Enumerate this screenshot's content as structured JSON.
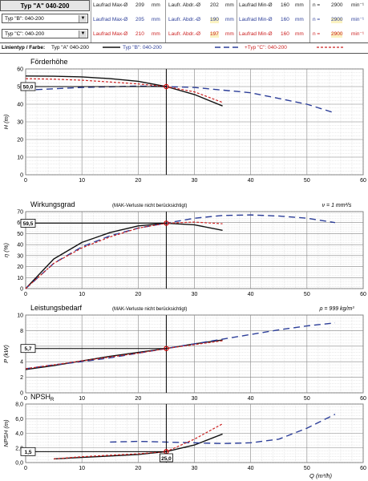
{
  "header": {
    "title_a": "Typ \"A\" 040-200",
    "select_b": "Typ \"B\": 040-200",
    "select_c": "Typ \"C\": 040-200",
    "rows": [
      {
        "color": "#222222",
        "max_label": "Laufrad Max-Ø",
        "max_val": "209",
        "max_unit": "mm",
        "abdr_label": "Laufr. Abdr.-Ø",
        "abdr_val": "202",
        "abdr_unit": "mm",
        "min_label": "Laufrad Min-Ø",
        "min_val": "160",
        "min_unit": "mm",
        "n_label": "n =",
        "n_val": "2900",
        "n_unit": "min⁻¹"
      },
      {
        "color": "#2c3e99",
        "max_label": "Laufrad Max-Ø",
        "max_val": "205",
        "max_unit": "mm",
        "abdr_label": "Laufr. Abdr.-Ø",
        "abdr_val": "190",
        "abdr_unit": "mm",
        "min_label": "Laufrad Min-Ø",
        "min_val": "160",
        "min_unit": "mm",
        "n_label": "n =",
        "n_val": "2900",
        "n_unit": "min⁻¹"
      },
      {
        "color": "#cc2222",
        "max_label": "Laufrad Max-Ø",
        "max_val": "210",
        "max_unit": "mm",
        "abdr_label": "Laufr. Abdr.-Ø",
        "abdr_val": "197",
        "abdr_unit": "mm",
        "min_label": "Laufrad Min-Ø",
        "min_val": "160",
        "min_unit": "mm",
        "n_label": "n =",
        "n_val": "2900",
        "n_unit": "min⁻¹"
      }
    ],
    "legend_label": "Linientyp / Farbe:",
    "legend_a": "Typ \"A\" 040-200",
    "legend_b": "Typ \"B\": 040-200",
    "legend_c": "+Typ \"C\": 040-200"
  },
  "colors": {
    "a": "#111111",
    "b": "#2c3e99",
    "c": "#cc2222",
    "marker": "#cc0000"
  },
  "x_axis": {
    "label": "Q (m³/h)",
    "ticks": [
      "0",
      "10",
      "20",
      "30",
      "40",
      "50",
      "60"
    ],
    "range": [
      0,
      60
    ]
  },
  "chart_data": [
    {
      "type": "line",
      "title": "Förderhöhe",
      "ylabel": "H (m)",
      "ylim": [
        0,
        60
      ],
      "yticks": [
        "0",
        "10",
        "20",
        "30",
        "40",
        "50",
        "60"
      ],
      "grid": true,
      "op_point": {
        "x": 25,
        "y": 50,
        "label": "50,0"
      },
      "series": [
        {
          "name": "Typ \"A\" 040-200",
          "x": [
            0,
            5,
            10,
            15,
            20,
            25,
            30,
            35
          ],
          "y": [
            56,
            55.9,
            55.5,
            54.5,
            53,
            50,
            45.5,
            39
          ]
        },
        {
          "name": "Typ \"B\": 040-200",
          "x": [
            0,
            10,
            20,
            25,
            30,
            40,
            50,
            55
          ],
          "y": [
            48,
            49.5,
            50.3,
            50,
            49.5,
            46.5,
            40,
            35
          ]
        },
        {
          "name": "+Typ \"C\": 040-200",
          "x": [
            0,
            5,
            10,
            15,
            20,
            25,
            30,
            35
          ],
          "y": [
            54.5,
            54.2,
            53.6,
            52.6,
            51.5,
            50,
            47,
            41
          ]
        }
      ]
    },
    {
      "type": "line",
      "title": "Wirkungsgrad",
      "note": "(MAK-Verluste nicht berücksichtigt)",
      "param": "ν = 1 mm²/s",
      "ylabel": "η (%)",
      "ylim": [
        0,
        70
      ],
      "yticks": [
        "0",
        "10",
        "20",
        "30",
        "40",
        "50",
        "60",
        "70"
      ],
      "grid": true,
      "op_point": {
        "x": 25,
        "y": 59.5,
        "label": "59,5"
      },
      "series": [
        {
          "name": "Typ \"A\" 040-200",
          "x": [
            0,
            5,
            10,
            15,
            20,
            25,
            30,
            35
          ],
          "y": [
            0,
            27,
            42,
            51,
            57,
            59.5,
            58,
            53
          ]
        },
        {
          "name": "Typ \"B\": 040-200",
          "x": [
            0,
            5,
            10,
            15,
            20,
            25,
            30,
            35,
            40,
            45,
            50,
            55
          ],
          "y": [
            0,
            23,
            38,
            48,
            55,
            59.5,
            64,
            66.5,
            67,
            66,
            64,
            60
          ]
        },
        {
          "name": "+Typ \"C\": 040-200",
          "x": [
            0,
            5,
            10,
            15,
            20,
            25,
            30,
            35
          ],
          "y": [
            0,
            23,
            37,
            47,
            55,
            59.5,
            60.5,
            59
          ]
        }
      ]
    },
    {
      "type": "line",
      "title": "Leistungsbedarf",
      "note": "(MAK-Verluste nicht berücksichtigt)",
      "param": "ρ = 999 kg/m³",
      "ylabel": "P (kW)",
      "ylim": [
        0,
        10
      ],
      "yticks": [
        "0",
        "2",
        "4",
        "6",
        "8",
        "10"
      ],
      "grid": true,
      "op_point": {
        "x": 25,
        "y": 5.7,
        "label": "5,7"
      },
      "series": [
        {
          "name": "Typ \"A\" 040-200",
          "x": [
            0,
            5,
            10,
            15,
            20,
            25,
            30,
            35
          ],
          "y": [
            3.0,
            3.5,
            4.1,
            4.7,
            5.2,
            5.7,
            6.3,
            6.8
          ]
        },
        {
          "name": "Typ \"B\": 040-200",
          "x": [
            0,
            5,
            10,
            15,
            20,
            25,
            30,
            35,
            40,
            45,
            50,
            55
          ],
          "y": [
            3.1,
            3.6,
            4.0,
            4.5,
            5.1,
            5.7,
            6.3,
            6.9,
            7.5,
            8.1,
            8.6,
            9.0
          ]
        },
        {
          "name": "+Typ \"C\": 040-200",
          "x": [
            0,
            5,
            10,
            15,
            20,
            25,
            30,
            35
          ],
          "y": [
            3.1,
            3.6,
            4.1,
            4.6,
            5.1,
            5.7,
            6.2,
            6.7
          ]
        }
      ]
    },
    {
      "type": "line",
      "title": "NPSH",
      "title_sub": "R",
      "ylabel": "NPSH (m)",
      "ylim": [
        0,
        8
      ],
      "yticks": [
        "0,0",
        "2,0",
        "4,0",
        "6,0",
        "8,0"
      ],
      "grid": true,
      "op_point": {
        "x": 25,
        "y": 1.5,
        "label": "1,5",
        "xlabel": "25,0"
      },
      "series": [
        {
          "name": "Typ \"A\" 040-200",
          "x": [
            5,
            10,
            15,
            20,
            25,
            30,
            35
          ],
          "y": [
            0.5,
            0.7,
            0.9,
            1.1,
            1.5,
            2.4,
            3.9
          ]
        },
        {
          "name": "Typ \"B\": 040-200",
          "x": [
            15,
            20,
            25,
            30,
            35,
            40,
            45,
            50,
            55
          ],
          "y": [
            2.8,
            2.9,
            2.8,
            2.7,
            2.6,
            2.7,
            3.2,
            4.7,
            6.6
          ]
        },
        {
          "name": "+Typ \"C\": 040-200",
          "x": [
            5,
            10,
            15,
            20,
            25,
            30,
            35
          ],
          "y": [
            0.5,
            0.8,
            1.0,
            1.2,
            1.5,
            3.2,
            5.3
          ]
        }
      ]
    }
  ]
}
